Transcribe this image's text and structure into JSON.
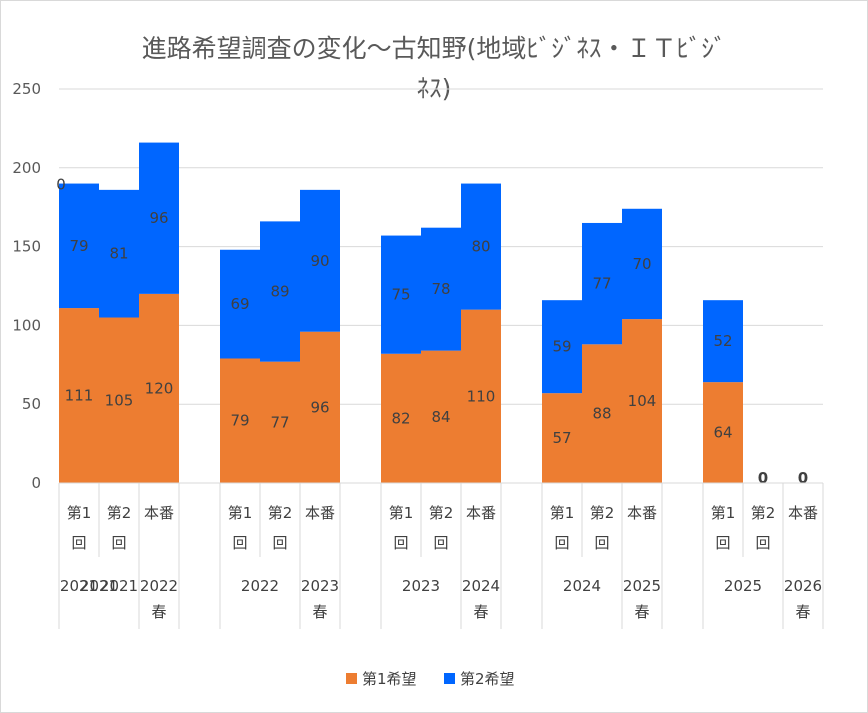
{
  "chart_data": {
    "type": "bar",
    "stacked": true,
    "title_lines": [
      "進路希望調査の変化～古知野(地域ﾋﾞｼﾞﾈｽ・ＩＴﾋﾞｼﾞ",
      "ﾈｽ)"
    ],
    "ylim": [
      0,
      250
    ],
    "yticks": [
      0,
      50,
      100,
      150,
      200,
      250
    ],
    "grid": true,
    "legend_position": "bottom",
    "colors": {
      "first_choice": "#ED7D31",
      "second_choice": "#0066FF",
      "grid": "#d9d9d9",
      "text": "#595959"
    },
    "groups": [
      {
        "categories": [
          {
            "label": [
              "第1",
              "回"
            ],
            "year": "2021",
            "first": 111,
            "second": 79,
            "top_label": "0"
          },
          {
            "label": [
              "第2",
              "回"
            ],
            "year": "2021",
            "first": 105,
            "second": 81
          },
          {
            "label": [
              "本番"
            ],
            "year": "2022",
            "year2": "春",
            "first": 120,
            "second": 96
          }
        ],
        "year_label": "2021"
      },
      {
        "categories": [
          {
            "label": [
              "第1",
              "回"
            ],
            "first": 79,
            "second": 69
          },
          {
            "label": [
              "第2",
              "回"
            ],
            "first": 77,
            "second": 89
          },
          {
            "label": [
              "本番"
            ],
            "year": "2023",
            "year2": "春",
            "first": 96,
            "second": 90
          }
        ],
        "year_label": "2022"
      },
      {
        "categories": [
          {
            "label": [
              "第1",
              "回"
            ],
            "first": 82,
            "second": 75
          },
          {
            "label": [
              "第2",
              "回"
            ],
            "first": 84,
            "second": 78
          },
          {
            "label": [
              "本番"
            ],
            "year": "2024",
            "year2": "春",
            "first": 110,
            "second": 80
          }
        ],
        "year_label": "2023"
      },
      {
        "categories": [
          {
            "label": [
              "第1",
              "回"
            ],
            "first": 57,
            "second": 59
          },
          {
            "label": [
              "第2",
              "回"
            ],
            "first": 88,
            "second": 77
          },
          {
            "label": [
              "本番"
            ],
            "year": "2025",
            "year2": "春",
            "first": 104,
            "second": 70
          }
        ],
        "year_label": "2024"
      },
      {
        "categories": [
          {
            "label": [
              "第1",
              "回"
            ],
            "first": 64,
            "second": 52
          },
          {
            "label": [
              "第2",
              "回"
            ],
            "first": 0,
            "second": 0,
            "zero_label": "0"
          },
          {
            "label": [
              "本番"
            ],
            "year": "2026",
            "year2": "春",
            "first": 0,
            "second": 0,
            "zero_label": "0"
          }
        ],
        "year_label": "2025"
      }
    ],
    "series": [
      {
        "name": "第1希望",
        "key": "first"
      },
      {
        "name": "第2希望",
        "key": "second"
      }
    ]
  }
}
